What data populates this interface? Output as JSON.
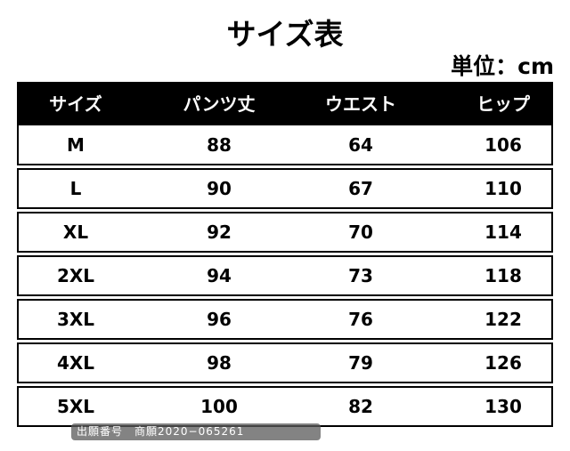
{
  "header": {
    "title": "サイズ表",
    "unit": "単位：cm"
  },
  "table": {
    "columns": [
      "サイズ",
      "パンツ丈",
      "ウエスト",
      "ヒップ"
    ],
    "rows": [
      [
        "M",
        88,
        64,
        106
      ],
      [
        "L",
        90,
        67,
        110
      ],
      [
        "XL",
        92,
        70,
        114
      ],
      [
        "2XL",
        94,
        73,
        118
      ],
      [
        "3XL",
        96,
        76,
        122
      ],
      [
        "4XL",
        98,
        79,
        126
      ],
      [
        "5XL",
        100,
        82,
        130
      ]
    ]
  },
  "watermark": "出願番号　商願2020−065261"
}
